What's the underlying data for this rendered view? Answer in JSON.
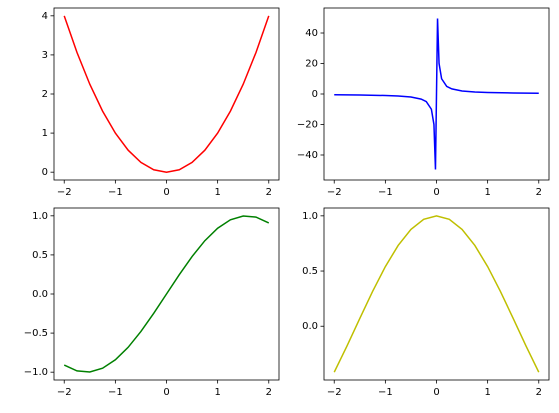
{
  "chart_data": [
    {
      "type": "line",
      "color": "#ff0000",
      "x": [
        -2,
        -1.75,
        -1.5,
        -1.25,
        -1,
        -0.75,
        -0.5,
        -0.25,
        0,
        0.25,
        0.5,
        0.75,
        1,
        1.25,
        1.5,
        1.75,
        2
      ],
      "values": [
        4,
        3.0625,
        2.25,
        1.5625,
        1,
        0.5625,
        0.25,
        0.0625,
        0,
        0.0625,
        0.25,
        0.5625,
        1,
        1.5625,
        2.25,
        3.0625,
        4
      ],
      "xlim": [
        -2.2,
        2.2
      ],
      "ylim": [
        -0.2,
        4.2
      ],
      "xticks": [
        {
          "value": -2,
          "label": "−2"
        },
        {
          "value": -1,
          "label": "−1"
        },
        0,
        1,
        2
      ],
      "yticks": [
        0,
        1,
        2,
        3,
        4
      ]
    },
    {
      "type": "line",
      "color": "#0000ff",
      "x": [
        -2,
        -1.5,
        -1,
        -0.75,
        -0.5,
        -0.3,
        -0.2,
        -0.1,
        -0.05,
        -0.0202,
        0.0202,
        0.05,
        0.1,
        0.2,
        0.3,
        0.5,
        0.75,
        1,
        1.5,
        2
      ],
      "values": [
        -0.5,
        -0.6667,
        -1,
        -1.3333,
        -2,
        -3.3333,
        -5,
        -10,
        -20,
        -49.5,
        49.5,
        20,
        10,
        5,
        3.3333,
        2,
        1.3333,
        1,
        0.6667,
        0.5
      ],
      "xlim": [
        -2.2,
        2.2
      ],
      "ylim": [
        -56.4,
        56.4
      ],
      "xticks": [
        {
          "value": -2,
          "label": "−2"
        },
        {
          "value": -1,
          "label": "−1"
        },
        0,
        1,
        2
      ],
      "yticks": [
        {
          "value": -40,
          "label": "−40"
        },
        {
          "value": -20,
          "label": "−20"
        },
        0,
        20,
        40
      ]
    },
    {
      "type": "line",
      "color": "#008000",
      "x": [
        -2,
        -1.75,
        -1.5,
        -1.25,
        -1,
        -0.75,
        -0.5,
        -0.25,
        0,
        0.25,
        0.5,
        0.75,
        1,
        1.25,
        1.5,
        1.75,
        2
      ],
      "values": [
        -0.9093,
        -0.984,
        -0.9975,
        -0.949,
        -0.8415,
        -0.6816,
        -0.4794,
        -0.2474,
        0,
        0.2474,
        0.4794,
        0.6816,
        0.8415,
        0.949,
        0.9975,
        0.984,
        0.9093
      ],
      "xlim": [
        -2.2,
        2.2
      ],
      "ylim": [
        -1.1,
        1.1
      ],
      "xticks": [
        {
          "value": -2,
          "label": "−2"
        },
        {
          "value": -1,
          "label": "−1"
        },
        0,
        1,
        2
      ],
      "yticks": [
        {
          "value": -1,
          "label": "−1.0"
        },
        {
          "value": -0.5,
          "label": "−0.5"
        },
        {
          "value": 0,
          "label": "0.0"
        },
        0.5,
        {
          "value": 1,
          "label": "1.0"
        }
      ]
    },
    {
      "type": "line",
      "color": "#bfbf00",
      "x": [
        -2,
        -1.75,
        -1.5,
        -1.25,
        -1,
        -0.75,
        -0.5,
        -0.25,
        0,
        0.25,
        0.5,
        0.75,
        1,
        1.25,
        1.5,
        1.75,
        2
      ],
      "values": [
        -0.4161,
        -0.1782,
        0.0707,
        0.3153,
        0.5403,
        0.7317,
        0.8776,
        0.9689,
        1,
        0.9689,
        0.8776,
        0.7317,
        0.5403,
        0.3153,
        0.0707,
        -0.1782,
        -0.4161
      ],
      "xlim": [
        -2.2,
        2.2
      ],
      "ylim": [
        -0.487,
        1.071
      ],
      "xticks": [
        {
          "value": -2,
          "label": "−2"
        },
        {
          "value": -1,
          "label": "−1"
        },
        0,
        1,
        2
      ],
      "yticks": [
        {
          "value": 0,
          "label": "0.0"
        },
        0.5,
        {
          "value": 1,
          "label": "1.0"
        }
      ]
    }
  ]
}
